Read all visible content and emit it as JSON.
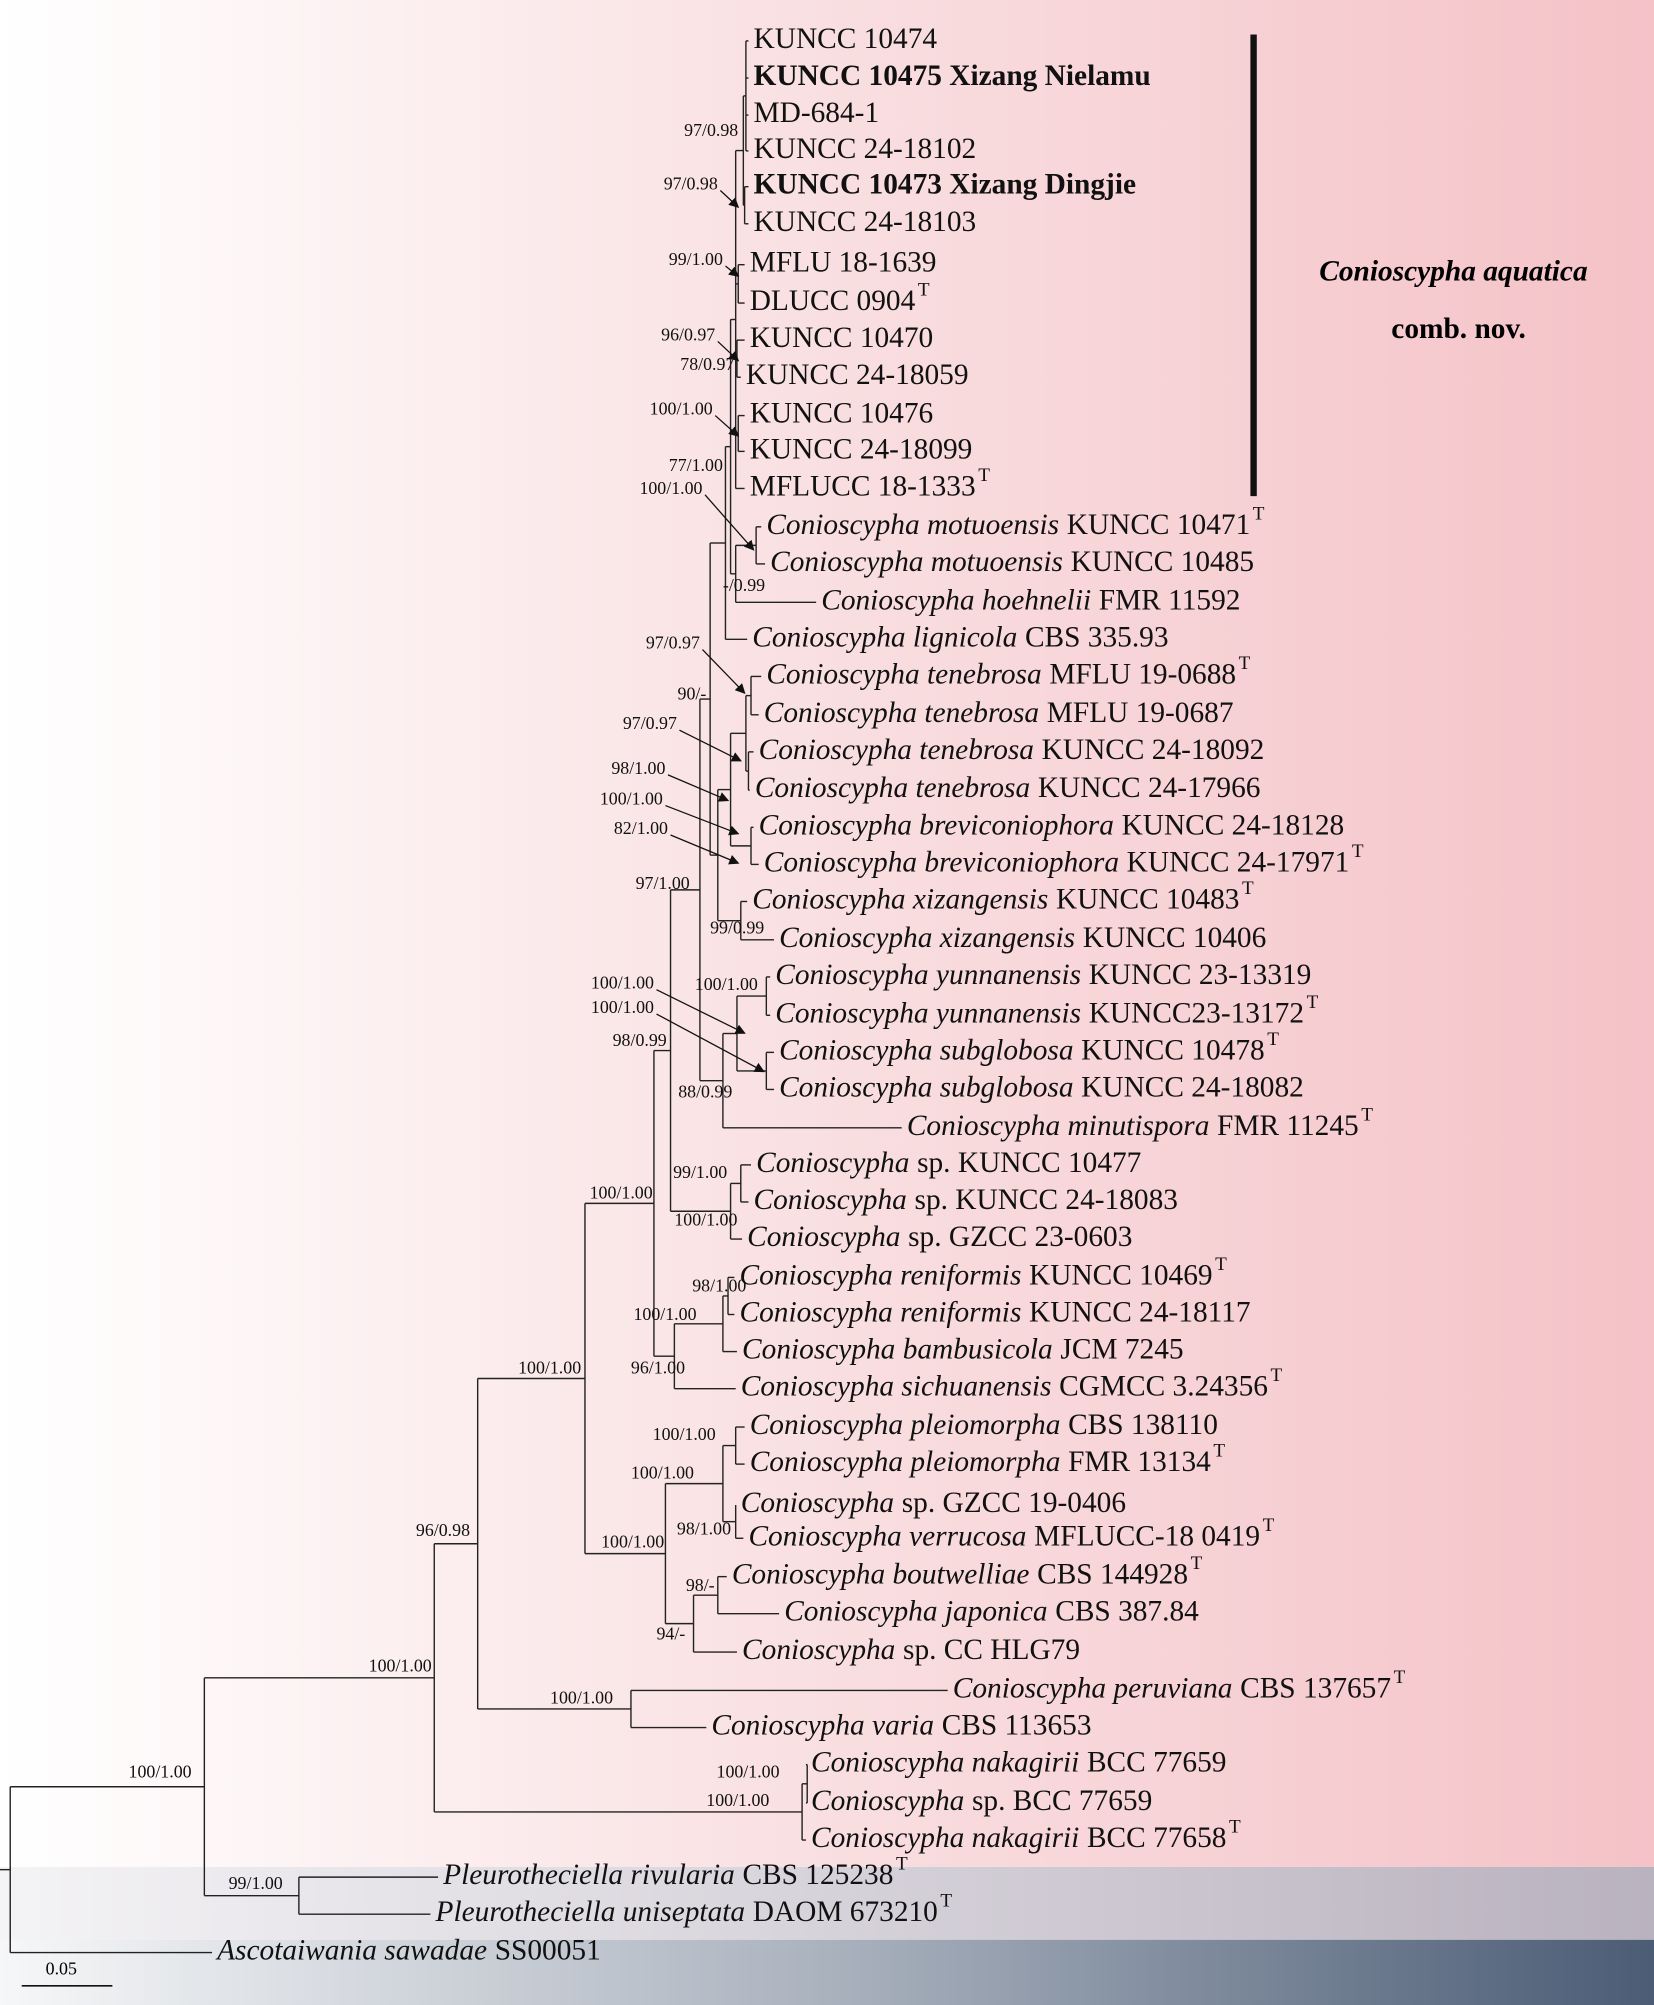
{
  "taxa": [
    {
      "strain": "KUNCC 10474"
    },
    {
      "strain": "KUNCC 10475 Xizang Nielamu",
      "bold": true
    },
    {
      "strain": "MD-684-1"
    },
    {
      "strain": "KUNCC 24-18102"
    },
    {
      "strain": "KUNCC 10473 Xizang Dingjie",
      "bold": true
    },
    {
      "strain": "KUNCC 24-18103"
    },
    {
      "strain": "MFLU 18-1639"
    },
    {
      "strain": "DLUCC 0904",
      "sup": "T"
    },
    {
      "strain": "KUNCC 10470"
    },
    {
      "strain": "KUNCC 24-18059"
    },
    {
      "strain": "KUNCC 10476"
    },
    {
      "strain": "KUNCC 24-18099"
    },
    {
      "strain": "MFLUCC 18-1333",
      "sup": "T"
    },
    {
      "name": "Conioscypha motuoensis",
      "strain": "KUNCC 10471",
      "sup": "T"
    },
    {
      "name": "Conioscypha motuoensis",
      "strain": "KUNCC 10485"
    },
    {
      "name": "Conioscypha hoehnelii",
      "strain": "FMR 11592"
    },
    {
      "name": "Conioscypha lignicola",
      "strain": "CBS 335.93"
    },
    {
      "name": "Conioscypha tenebrosa",
      "strain": "MFLU 19-0688",
      "sup": "T"
    },
    {
      "name": "Conioscypha tenebrosa",
      "strain": "MFLU 19-0687"
    },
    {
      "name": "Conioscypha tenebrosa",
      "strain": "KUNCC 24-18092"
    },
    {
      "name": "Conioscypha tenebrosa",
      "strain": "KUNCC 24-17966"
    },
    {
      "name": "Conioscypha breviconiophora",
      "strain": "KUNCC 24-18128"
    },
    {
      "name": "Conioscypha breviconiophora",
      "strain": "KUNCC 24-17971",
      "sup": "T"
    },
    {
      "name": "Conioscypha xizangensis",
      "strain": "KUNCC 10483",
      "sup": "T"
    },
    {
      "name": "Conioscypha xizangensis",
      "strain": "KUNCC 10406"
    },
    {
      "name": "Conioscypha yunnanensis",
      "strain": "KUNCC 23-13319"
    },
    {
      "name": "Conioscypha yunnanensis",
      "strain": "KUNCC23-13172",
      "sup": "T"
    },
    {
      "name": "Conioscypha subglobosa",
      "strain": "KUNCC 10478",
      "sup": "T"
    },
    {
      "name": "Conioscypha subglobosa",
      "strain": "KUNCC 24-18082"
    },
    {
      "name": "Conioscypha minutispora",
      "strain": "FMR 11245",
      "sup": "T"
    },
    {
      "name": "Conioscypha",
      "strain": "sp. KUNCC 10477"
    },
    {
      "name": "Conioscypha",
      "strain": "sp. KUNCC 24-18083"
    },
    {
      "name": "Conioscypha",
      "strain": "sp. GZCC 23-0603"
    },
    {
      "name": "Conioscypha reniformis",
      "strain": "KUNCC 10469",
      "sup": "T"
    },
    {
      "name": "Conioscypha reniformis",
      "strain": "KUNCC 24-18117"
    },
    {
      "name": "Conioscypha bambusicola",
      "strain": "JCM 7245"
    },
    {
      "name": "Conioscypha sichuanensis",
      "strain": "CGMCC 3.24356",
      "sup": "T"
    },
    {
      "name": "Conioscypha pleiomorpha",
      "strain": "CBS 138110"
    },
    {
      "name": "Conioscypha pleiomorpha",
      "strain": "FMR 13134",
      "sup": "T"
    },
    {
      "name": "Conioscypha",
      "strain": "sp. GZCC 19-0406"
    },
    {
      "name": "Conioscypha verrucosa",
      "strain": "MFLUCC-18 0419",
      "sup": "T"
    },
    {
      "name": "Conioscypha boutwelliae",
      "strain": "CBS 144928",
      "sup": "T"
    },
    {
      "name": "Conioscypha japonica",
      "strain": "CBS 387.84"
    },
    {
      "name": "Conioscypha",
      "strain": "sp. CC HLG79"
    },
    {
      "name": "Conioscypha peruviana",
      "strain": "CBS 137657",
      "sup": "T"
    },
    {
      "name": "Conioscypha varia",
      "strain": "CBS 113653"
    },
    {
      "name": "Conioscypha nakagirii",
      "strain": "BCC 77659"
    },
    {
      "name": "Conioscypha",
      "strain": "sp. BCC 77659"
    },
    {
      "name": "Conioscypha nakagirii",
      "strain": "BCC 77658",
      "sup": "T"
    },
    {
      "name": "Pleurotheciella rivularia",
      "strain": "CBS 125238",
      "sup": "T"
    },
    {
      "name": "Pleurotheciella uniseptata",
      "strain": "DAOM 673210",
      "sup": "T"
    },
    {
      "name": "Ascotaiwania sawadae",
      "strain": "SS00051"
    }
  ],
  "support": [
    "97/0.98",
    "97/0.98",
    "99/1.00",
    "96/0.97",
    "78/0.97",
    "100/1.00",
    "77/1.00",
    "100/1.00",
    "-/0.99",
    "97/0.97",
    "90/-",
    "97/0.97",
    "98/1.00",
    "100/1.00",
    "82/1.00",
    "97/1.00",
    "99/0.99",
    "100/1.00",
    "100/1.00",
    "100/1.00",
    "98/0.99",
    "88/0.99",
    "100/1.00",
    "99/1.00",
    "100/1.00",
    "98/1.00",
    "100/1.00",
    "96/1.00",
    "100/1.00",
    "100/1.00",
    "100/1.00",
    "98/1.00",
    "100/1.00",
    "96/0.98",
    "98/-",
    "94/-",
    "100/1.00",
    "100/1.00",
    "100/1.00",
    "100/1.00",
    "100/1.00",
    "99/1.00"
  ],
  "clade": {
    "name": "Conioscypha aquatica",
    "note": "comb. nov."
  },
  "scale_bar": "0.05"
}
